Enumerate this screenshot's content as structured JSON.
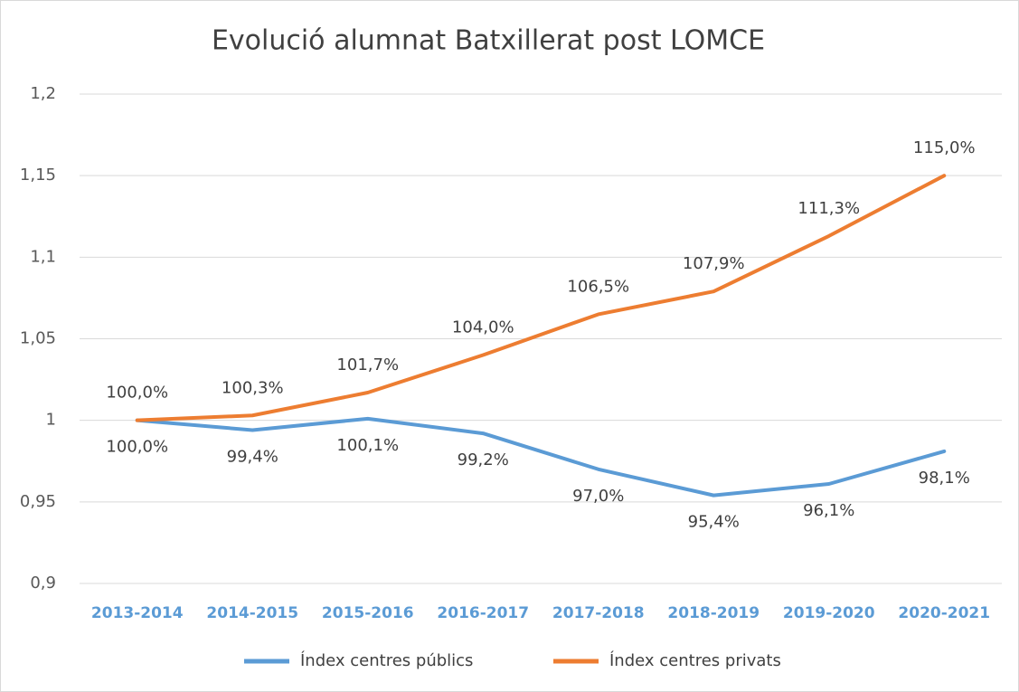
{
  "chart_data": {
    "type": "line",
    "title": "Evolució alumnat Batxillerat post LOMCE",
    "categories": [
      "2013-2014",
      "2014-2015",
      "2015-2016",
      "2016-2017",
      "2017-2018",
      "2018-2019",
      "2019-2020",
      "2020-2021"
    ],
    "series": [
      {
        "name": "Índex centres públics",
        "color": "#5b9bd5",
        "values": [
          1.0,
          0.994,
          1.001,
          0.992,
          0.97,
          0.954,
          0.961,
          0.981
        ],
        "value_labels": [
          "100,0%",
          "99,4%",
          "100,1%",
          "99,2%",
          "97,0%",
          "95,4%",
          "96,1%",
          "98,1%"
        ]
      },
      {
        "name": "Índex centres privats",
        "color": "#ed7d31",
        "values": [
          1.0,
          1.003,
          1.017,
          1.04,
          1.065,
          1.079,
          1.113,
          1.15
        ],
        "value_labels": [
          "100,0%",
          "100,3%",
          "101,7%",
          "104,0%",
          "106,5%",
          "107,9%",
          "111,3%",
          "115,0%"
        ]
      }
    ],
    "ylim": [
      0.9,
      1.2
    ],
    "yticks": [
      {
        "value": 0.9,
        "label": "0,9"
      },
      {
        "value": 0.95,
        "label": "0,95"
      },
      1,
      {
        "value": 1.05,
        "label": "1,05"
      },
      {
        "value": 1.1,
        "label": "1,1"
      },
      {
        "value": 1.15,
        "label": "1,15"
      },
      {
        "value": 1.2,
        "label": "1,2"
      }
    ],
    "grid": true,
    "legend": "bottom"
  }
}
